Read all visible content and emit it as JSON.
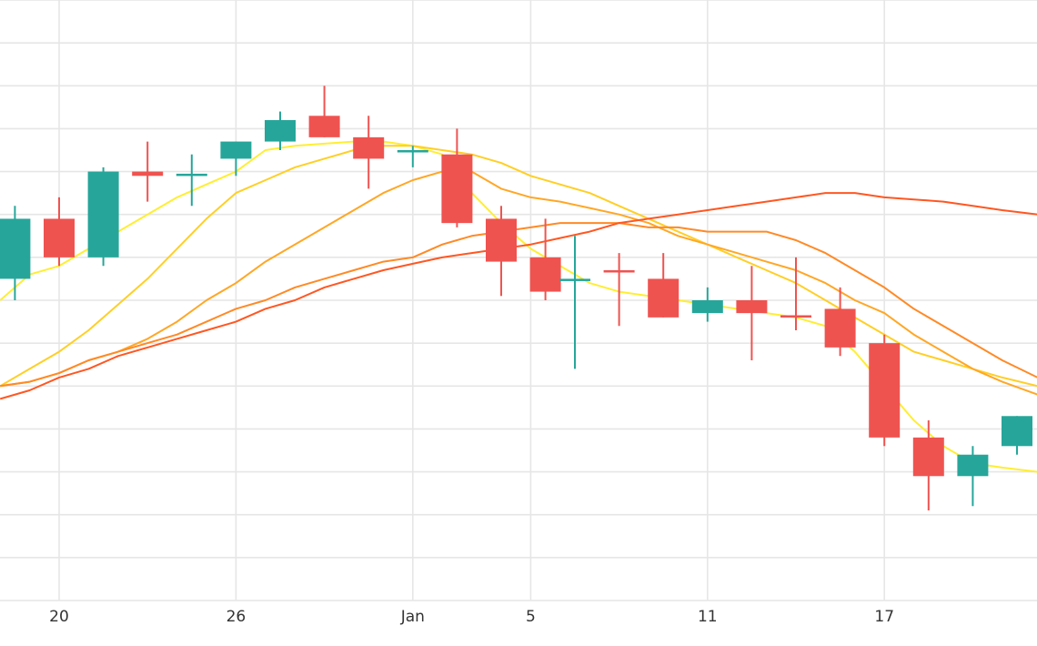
{
  "chart_data": {
    "type": "candlestick",
    "grid": true,
    "x_ticks": [
      {
        "day": 20,
        "label": "20"
      },
      {
        "day": 26,
        "label": "26"
      },
      {
        "day": 32,
        "label": "Jan"
      },
      {
        "day": 36,
        "label": "5"
      },
      {
        "day": 42,
        "label": "11"
      },
      {
        "day": 48,
        "label": "17"
      }
    ],
    "x_range": [
      18,
      53.2
    ],
    "y_range": [
      0,
      14
    ],
    "colors": {
      "up": "#26a69a",
      "down": "#ef5350",
      "grid": "#e6e6e6"
    },
    "candles": [
      {
        "day": 18.5,
        "open": 7.5,
        "high": 9.2,
        "low": 7.0,
        "close": 8.9
      },
      {
        "day": 20,
        "open": 8.9,
        "high": 9.4,
        "low": 7.8,
        "close": 8.0
      },
      {
        "day": 21.5,
        "open": 8.0,
        "high": 10.1,
        "low": 7.8,
        "close": 10.0
      },
      {
        "day": 23,
        "open": 10.0,
        "high": 10.7,
        "low": 9.3,
        "close": 9.9
      },
      {
        "day": 24.5,
        "open": 9.9,
        "high": 10.4,
        "low": 9.2,
        "close": 9.95
      },
      {
        "day": 26,
        "open": 10.3,
        "high": 10.7,
        "low": 9.9,
        "close": 10.7
      },
      {
        "day": 27.5,
        "open": 10.7,
        "high": 11.4,
        "low": 10.5,
        "close": 11.2
      },
      {
        "day": 29,
        "open": 11.3,
        "high": 12.0,
        "low": 10.8,
        "close": 10.8
      },
      {
        "day": 30.5,
        "open": 10.8,
        "high": 11.3,
        "low": 9.6,
        "close": 10.3
      },
      {
        "day": 32,
        "open": 10.5,
        "high": 10.6,
        "low": 10.1,
        "close": 10.5
      },
      {
        "day": 33.5,
        "open": 10.4,
        "high": 11.0,
        "low": 8.7,
        "close": 8.8
      },
      {
        "day": 35,
        "open": 8.9,
        "high": 9.2,
        "low": 7.1,
        "close": 7.9
      },
      {
        "day": 36.5,
        "open": 8.0,
        "high": 8.9,
        "low": 7.0,
        "close": 7.2
      },
      {
        "day": 37.5,
        "open": 7.45,
        "high": 8.5,
        "low": 5.4,
        "close": 7.5
      },
      {
        "day": 39,
        "open": 7.7,
        "high": 8.1,
        "low": 6.4,
        "close": 7.65
      },
      {
        "day": 40.5,
        "open": 7.5,
        "high": 8.1,
        "low": 6.6,
        "close": 6.6
      },
      {
        "day": 42,
        "open": 6.7,
        "high": 7.3,
        "low": 6.5,
        "close": 7.0
      },
      {
        "day": 43.5,
        "open": 7.0,
        "high": 7.8,
        "low": 5.6,
        "close": 6.7
      },
      {
        "day": 45,
        "open": 6.65,
        "high": 8.0,
        "low": 6.3,
        "close": 6.62
      },
      {
        "day": 46.5,
        "open": 6.8,
        "high": 7.3,
        "low": 5.7,
        "close": 5.9
      },
      {
        "day": 48,
        "open": 6.0,
        "high": 6.2,
        "low": 3.6,
        "close": 3.8
      },
      {
        "day": 49.5,
        "open": 3.8,
        "high": 4.2,
        "low": 2.1,
        "close": 2.9
      },
      {
        "day": 51,
        "open": 2.9,
        "high": 3.6,
        "low": 2.2,
        "close": 3.4
      },
      {
        "day": 52.5,
        "open": 3.6,
        "high": 4.3,
        "low": 3.4,
        "close": 4.3
      }
    ],
    "series": [
      {
        "color": "#ffee33",
        "points": [
          [
            18,
            7.0
          ],
          [
            19,
            7.6
          ],
          [
            20,
            7.8
          ],
          [
            21,
            8.2
          ],
          [
            22,
            8.6
          ],
          [
            23,
            9.0
          ],
          [
            24,
            9.4
          ],
          [
            25,
            9.7
          ],
          [
            26,
            10.0
          ],
          [
            27,
            10.5
          ],
          [
            28,
            10.6
          ],
          [
            29,
            10.65
          ],
          [
            30,
            10.7
          ],
          [
            31,
            10.7
          ],
          [
            32,
            10.6
          ],
          [
            33,
            10.4
          ],
          [
            34,
            9.5
          ],
          [
            35,
            8.8
          ],
          [
            36,
            8.2
          ],
          [
            37,
            7.8
          ],
          [
            38,
            7.4
          ],
          [
            39,
            7.2
          ],
          [
            40,
            7.1
          ],
          [
            41,
            7.0
          ],
          [
            42,
            6.9
          ],
          [
            43,
            6.8
          ],
          [
            44,
            6.7
          ],
          [
            45,
            6.6
          ],
          [
            46,
            6.4
          ],
          [
            47,
            5.8
          ],
          [
            48,
            5.0
          ],
          [
            49,
            4.2
          ],
          [
            50,
            3.6
          ],
          [
            51,
            3.2
          ],
          [
            52,
            3.1
          ],
          [
            53.2,
            3.0
          ]
        ]
      },
      {
        "color": "#ffcf26",
        "points": [
          [
            18,
            5.0
          ],
          [
            19,
            5.4
          ],
          [
            20,
            5.8
          ],
          [
            21,
            6.3
          ],
          [
            22,
            6.9
          ],
          [
            23,
            7.5
          ],
          [
            24,
            8.2
          ],
          [
            25,
            8.9
          ],
          [
            26,
            9.5
          ],
          [
            27,
            9.8
          ],
          [
            28,
            10.1
          ],
          [
            29,
            10.3
          ],
          [
            30,
            10.5
          ],
          [
            31,
            10.6
          ],
          [
            32,
            10.6
          ],
          [
            33,
            10.5
          ],
          [
            34,
            10.4
          ],
          [
            35,
            10.2
          ],
          [
            36,
            9.9
          ],
          [
            37,
            9.7
          ],
          [
            38,
            9.5
          ],
          [
            39,
            9.2
          ],
          [
            40,
            8.9
          ],
          [
            41,
            8.6
          ],
          [
            42,
            8.3
          ],
          [
            43,
            8.0
          ],
          [
            44,
            7.7
          ],
          [
            45,
            7.4
          ],
          [
            46,
            7.0
          ],
          [
            47,
            6.6
          ],
          [
            48,
            6.2
          ],
          [
            49,
            5.8
          ],
          [
            50,
            5.6
          ],
          [
            51,
            5.4
          ],
          [
            52,
            5.2
          ],
          [
            53.2,
            5.0
          ]
        ]
      },
      {
        "color": "#ffa726",
        "points": [
          [
            18,
            5.0
          ],
          [
            19,
            5.1
          ],
          [
            20,
            5.3
          ],
          [
            21,
            5.6
          ],
          [
            22,
            5.8
          ],
          [
            23,
            6.1
          ],
          [
            24,
            6.5
          ],
          [
            25,
            7.0
          ],
          [
            26,
            7.4
          ],
          [
            27,
            7.9
          ],
          [
            28,
            8.3
          ],
          [
            29,
            8.7
          ],
          [
            30,
            9.1
          ],
          [
            31,
            9.5
          ],
          [
            32,
            9.8
          ],
          [
            33,
            10.0
          ],
          [
            34,
            10.0
          ],
          [
            35,
            9.6
          ],
          [
            36,
            9.4
          ],
          [
            37,
            9.3
          ],
          [
            38,
            9.15
          ],
          [
            39,
            9.0
          ],
          [
            40,
            8.8
          ],
          [
            41,
            8.5
          ],
          [
            42,
            8.3
          ],
          [
            43,
            8.1
          ],
          [
            44,
            7.9
          ],
          [
            45,
            7.7
          ],
          [
            46,
            7.4
          ],
          [
            47,
            7.0
          ],
          [
            48,
            6.7
          ],
          [
            49,
            6.2
          ],
          [
            50,
            5.8
          ],
          [
            51,
            5.4
          ],
          [
            52,
            5.1
          ],
          [
            53.2,
            4.8
          ]
        ]
      },
      {
        "color": "#ff8a26",
        "points": [
          [
            18,
            5.0
          ],
          [
            19,
            5.1
          ],
          [
            20,
            5.3
          ],
          [
            21,
            5.6
          ],
          [
            22,
            5.8
          ],
          [
            23,
            6.0
          ],
          [
            24,
            6.2
          ],
          [
            25,
            6.5
          ],
          [
            26,
            6.8
          ],
          [
            27,
            7.0
          ],
          [
            28,
            7.3
          ],
          [
            29,
            7.5
          ],
          [
            30,
            7.7
          ],
          [
            31,
            7.9
          ],
          [
            32,
            8.0
          ],
          [
            33,
            8.3
          ],
          [
            34,
            8.5
          ],
          [
            35,
            8.6
          ],
          [
            36,
            8.7
          ],
          [
            37,
            8.8
          ],
          [
            38,
            8.8
          ],
          [
            39,
            8.8
          ],
          [
            40,
            8.7
          ],
          [
            41,
            8.7
          ],
          [
            42,
            8.6
          ],
          [
            43,
            8.6
          ],
          [
            44,
            8.6
          ],
          [
            45,
            8.4
          ],
          [
            46,
            8.1
          ],
          [
            47,
            7.7
          ],
          [
            48,
            7.3
          ],
          [
            49,
            6.8
          ],
          [
            50,
            6.4
          ],
          [
            51,
            6.0
          ],
          [
            52,
            5.6
          ],
          [
            53.2,
            5.2
          ]
        ]
      },
      {
        "color": "#ff5722",
        "points": [
          [
            18,
            4.7
          ],
          [
            19,
            4.9
          ],
          [
            20,
            5.2
          ],
          [
            21,
            5.4
          ],
          [
            22,
            5.7
          ],
          [
            23,
            5.9
          ],
          [
            24,
            6.1
          ],
          [
            25,
            6.3
          ],
          [
            26,
            6.5
          ],
          [
            27,
            6.8
          ],
          [
            28,
            7.0
          ],
          [
            29,
            7.3
          ],
          [
            30,
            7.5
          ],
          [
            31,
            7.7
          ],
          [
            32,
            7.85
          ],
          [
            33,
            8.0
          ],
          [
            34,
            8.1
          ],
          [
            35,
            8.2
          ],
          [
            36,
            8.3
          ],
          [
            37,
            8.45
          ],
          [
            38,
            8.6
          ],
          [
            39,
            8.8
          ],
          [
            40,
            8.9
          ],
          [
            41,
            9.0
          ],
          [
            42,
            9.1
          ],
          [
            43,
            9.2
          ],
          [
            44,
            9.3
          ],
          [
            45,
            9.4
          ],
          [
            46,
            9.5
          ],
          [
            47,
            9.5
          ],
          [
            48,
            9.4
          ],
          [
            49,
            9.35
          ],
          [
            50,
            9.3
          ],
          [
            51,
            9.2
          ],
          [
            52,
            9.1
          ],
          [
            53.2,
            9.0
          ]
        ]
      }
    ]
  }
}
